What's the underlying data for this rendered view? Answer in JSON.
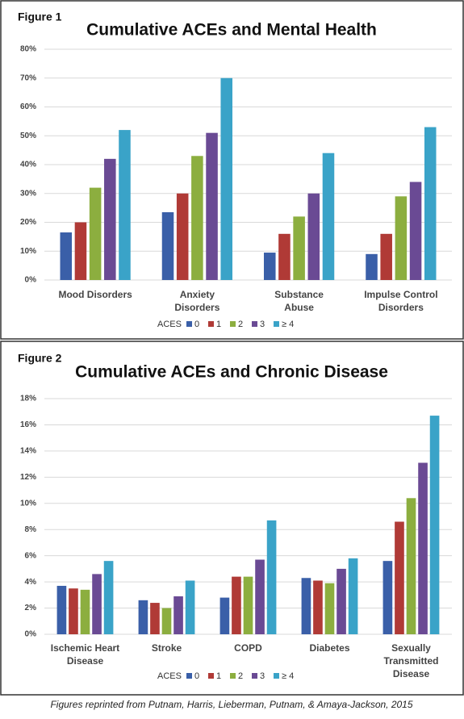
{
  "chart_data": [
    {
      "type": "bar",
      "figure_label": "Figure 1",
      "title": "Cumulative ACEs and Mental Health",
      "categories": [
        "Mood Disorders",
        "Anxiety Disorders",
        "Substance Abuse",
        "Impulse Control Disorders"
      ],
      "legend_title": "ACES",
      "series": [
        {
          "name": "0",
          "color": "#3a5fa8",
          "values": [
            16.5,
            23.5,
            9.5,
            9
          ]
        },
        {
          "name": "1",
          "color": "#b03a36",
          "values": [
            20,
            30,
            16,
            16
          ]
        },
        {
          "name": "2",
          "color": "#8cae3f",
          "values": [
            32,
            43,
            22,
            29
          ]
        },
        {
          "name": "3",
          "color": "#6a4a94",
          "values": [
            42,
            51,
            30,
            34
          ]
        },
        {
          "name": "≥ 4",
          "color": "#3aa3c8",
          "values": [
            52,
            70,
            44,
            53
          ]
        }
      ],
      "ylim": [
        0,
        80
      ],
      "yticks": [
        {
          "value": 0,
          "label": "0%"
        },
        {
          "value": 10,
          "label": "10%"
        },
        {
          "value": 20,
          "label": "20%"
        },
        {
          "value": 30,
          "label": "30%"
        },
        {
          "value": 40,
          "label": "40%"
        },
        {
          "value": 50,
          "label": "50%"
        },
        {
          "value": 60,
          "label": "60%"
        },
        {
          "value": 70,
          "label": "70%"
        },
        {
          "value": 80,
          "label": "80%"
        }
      ],
      "grid": true
    },
    {
      "type": "bar",
      "figure_label": "Figure 2",
      "title": "Cumulative ACEs and Chronic Disease",
      "categories": [
        "Ischemic Heart Disease",
        "Stroke",
        "COPD",
        "Diabetes",
        "Sexually Transmitted Disease"
      ],
      "legend_title": "ACES",
      "series": [
        {
          "name": "0",
          "color": "#3a5fa8",
          "values": [
            3.7,
            2.6,
            2.8,
            4.3,
            5.6
          ]
        },
        {
          "name": "1",
          "color": "#b03a36",
          "values": [
            3.5,
            2.4,
            4.4,
            4.1,
            8.6
          ]
        },
        {
          "name": "2",
          "color": "#8cae3f",
          "values": [
            3.4,
            2.0,
            4.4,
            3.9,
            10.4
          ]
        },
        {
          "name": "3",
          "color": "#6a4a94",
          "values": [
            4.6,
            2.9,
            5.7,
            5.0,
            13.1
          ]
        },
        {
          "name": "≥ 4",
          "color": "#3aa3c8",
          "values": [
            5.6,
            4.1,
            8.7,
            5.8,
            16.7
          ]
        }
      ],
      "ylim": [
        0,
        18
      ],
      "yticks": [
        {
          "value": 0,
          "label": "0%"
        },
        {
          "value": 2,
          "label": "2%"
        },
        {
          "value": 4,
          "label": "4%"
        },
        {
          "value": 6,
          "label": "6%"
        },
        {
          "value": 8,
          "label": "8%"
        },
        {
          "value": 10,
          "label": "10%"
        },
        {
          "value": 12,
          "label": "12%"
        },
        {
          "value": 14,
          "label": "14%"
        },
        {
          "value": 16,
          "label": "16%"
        },
        {
          "value": 18,
          "label": "18%"
        }
      ],
      "grid": true
    }
  ],
  "caption": "Figures reprinted from Putnam, Harris, Lieberman, Putnam, & Amaya-Jackson, 2015"
}
